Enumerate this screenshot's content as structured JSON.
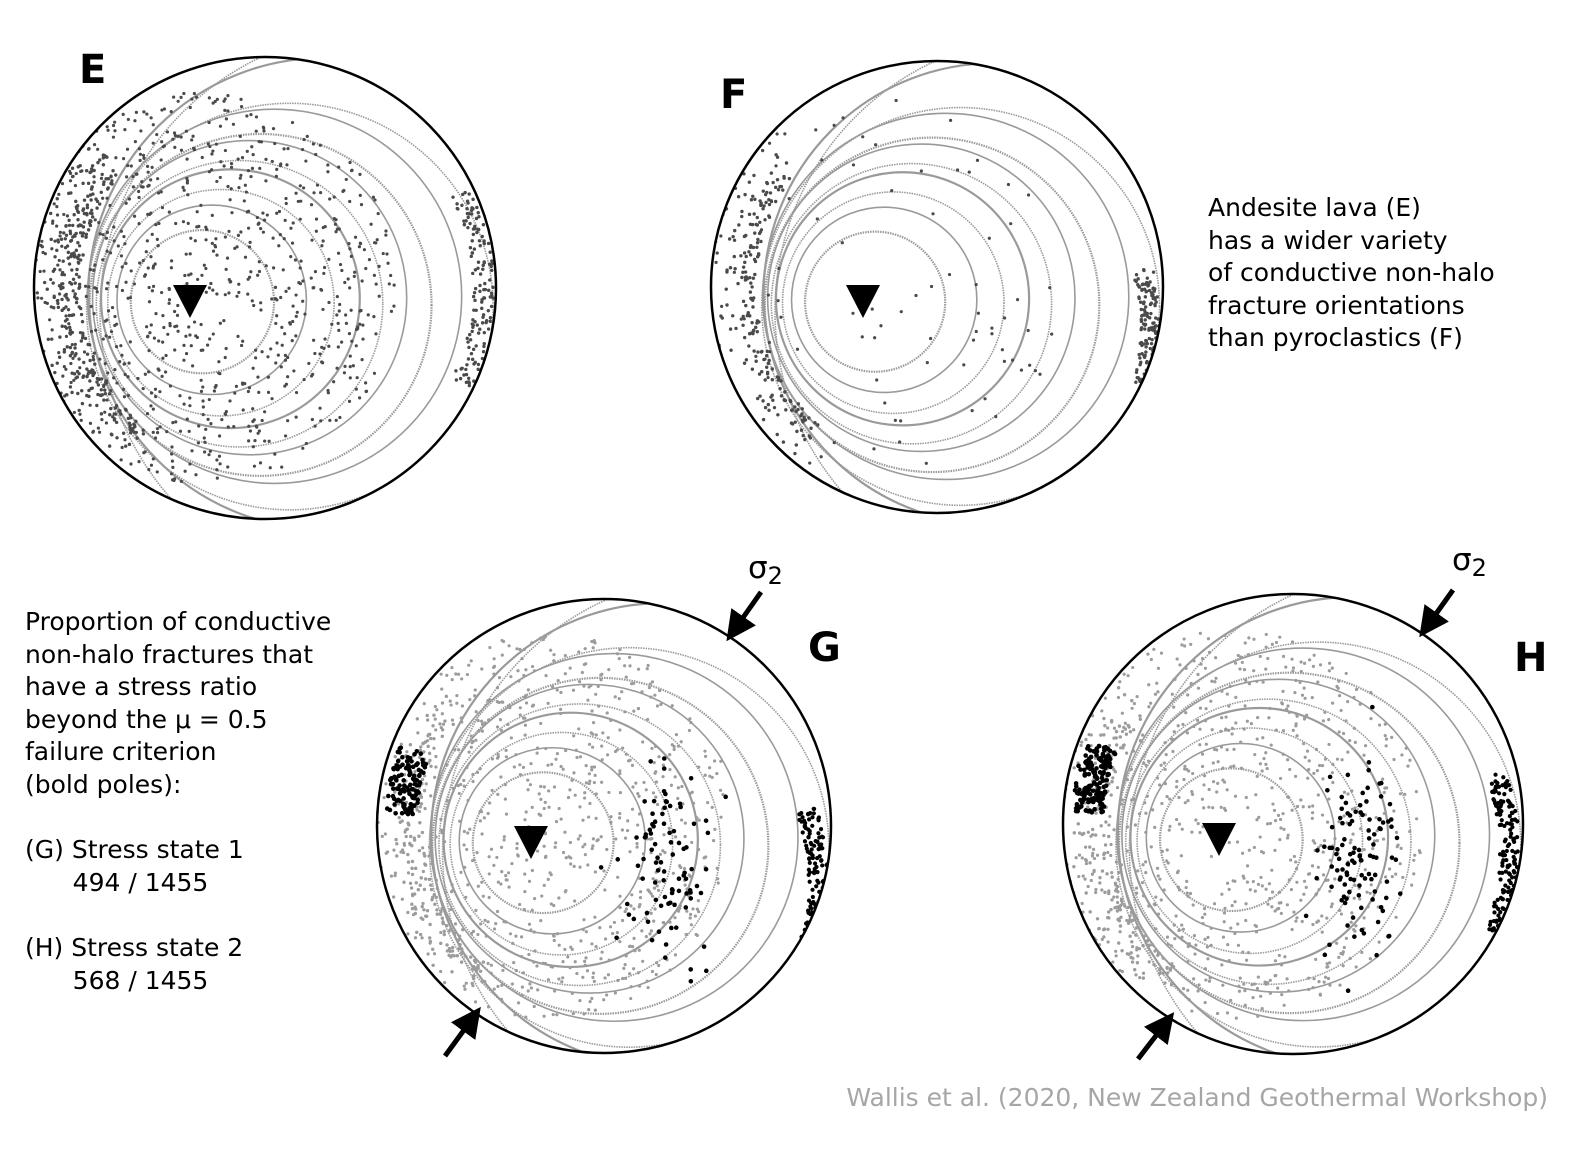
{
  "panels": {
    "E": {
      "label": "E"
    },
    "F": {
      "label": "F"
    },
    "G": {
      "label": "G"
    },
    "H": {
      "label": "H"
    }
  },
  "notes": {
    "ef_text": "Andesite lava (E)\nhas a wider variety\nof conductive non-halo\nfracture orientations\nthan pyroclastics (F)",
    "gh_text": "Proportion of conductive\nnon-halo fractures that\nhave a stress ratio\nbeyond the μ = 0.5\nfailure criterion\n(bold poles):\n\n(G) Stress state 1\n      494 / 1455\n\n(H) Stress state 2\n      568 / 1455"
  },
  "stress_labels": {
    "sigma_symbol": "σ",
    "sigma_subscript": "2"
  },
  "credit": "Wallis et al. (2020, New Zealand Geothermal Workshop)",
  "colors": {
    "outline": "#000000",
    "contour": "#9a9a9a",
    "pole": "#4a4a4a",
    "pole_light": "#9c9c9c",
    "pole_bold": "#000000",
    "credit": "#a6a6a6"
  }
}
